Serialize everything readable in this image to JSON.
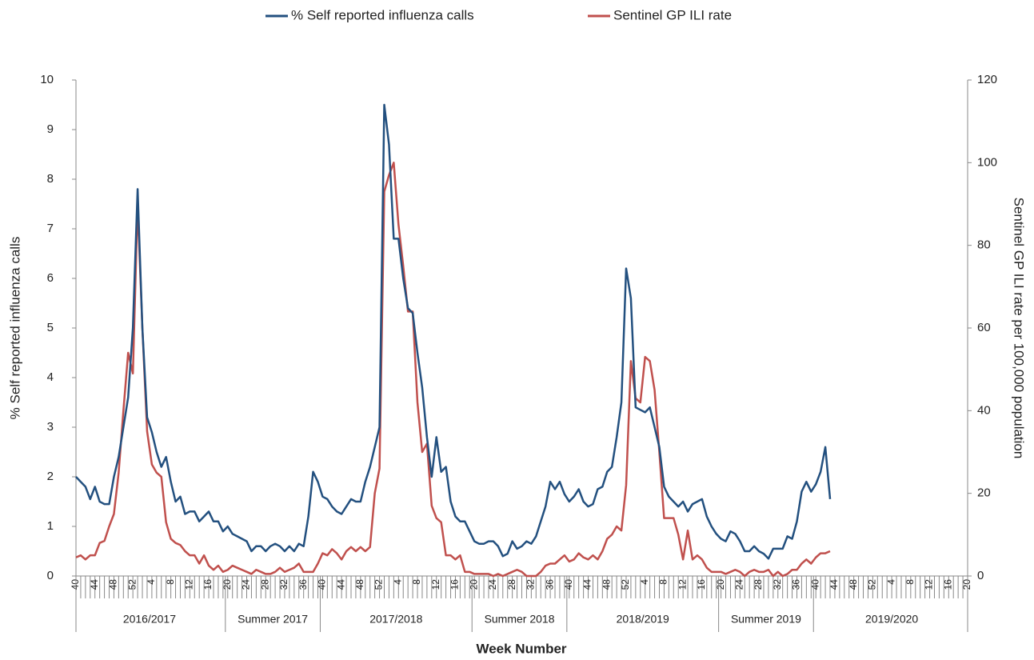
{
  "chart_data": {
    "type": "line",
    "x_label": "Week Number",
    "y_label": "% Self reported influenza calls",
    "y2_label": "Sentinel GP ILI rate per 100,000 population",
    "categories": [
      "40",
      null,
      null,
      null,
      "44",
      null,
      null,
      null,
      "48",
      null,
      null,
      null,
      "52",
      null,
      null,
      null,
      "4",
      null,
      null,
      null,
      "8",
      null,
      null,
      null,
      "12",
      null,
      null,
      null,
      "16",
      null,
      null,
      null,
      "20",
      null,
      null,
      null,
      "24",
      null,
      null,
      null,
      "28",
      null,
      null,
      null,
      "32",
      null,
      null,
      null,
      "36",
      null,
      null,
      null,
      "40",
      null,
      null,
      null,
      "44",
      null,
      null,
      null,
      "48",
      null,
      null,
      null,
      "52",
      null,
      null,
      null,
      "4",
      null,
      null,
      null,
      "8",
      null,
      null,
      null,
      "12",
      null,
      null,
      null,
      "16",
      null,
      null,
      null,
      "20",
      null,
      null,
      null,
      "24",
      null,
      null,
      null,
      "28",
      null,
      null,
      null,
      "32",
      null,
      null,
      null,
      "36",
      null,
      null,
      null,
      "40",
      null,
      null,
      null,
      "44",
      null,
      null,
      null,
      "48",
      null,
      null,
      null,
      "52",
      null,
      null,
      null,
      "4",
      null,
      null,
      null,
      "8",
      null,
      null,
      null,
      "12",
      null,
      null,
      null,
      "16",
      null,
      null,
      null,
      "20",
      null,
      null,
      null,
      "24",
      null,
      null,
      null,
      "28",
      null,
      null,
      null,
      "32",
      null,
      null,
      null,
      "36",
      null,
      null,
      null,
      "40",
      null,
      null,
      null,
      "44",
      null,
      null,
      null,
      "48",
      null,
      null,
      null,
      "52",
      null,
      null,
      null,
      "4",
      null,
      null,
      null,
      "8",
      null,
      null,
      null,
      "12",
      null,
      null,
      null,
      "16",
      null,
      null,
      null,
      "20"
    ],
    "season_groups": [
      {
        "label": "2016/2017",
        "weeks": 32
      },
      {
        "label": "Summer 2017",
        "weeks": 20
      },
      {
        "label": "2017/2018",
        "weeks": 32
      },
      {
        "label": "Summer 2018",
        "weeks": 20
      },
      {
        "label": "2018/2019",
        "weeks": 32
      },
      {
        "label": "Summer 2019",
        "weeks": 20
      },
      {
        "label": "2019/2020",
        "weeks": 33
      }
    ],
    "series": [
      {
        "name": "% Self reported influenza calls",
        "color": "#23507f",
        "axis": "y",
        "values": [
          2.0,
          1.9,
          1.8,
          1.55,
          1.8,
          1.5,
          1.45,
          1.45,
          2.0,
          2.4,
          3.0,
          3.6,
          5.0,
          7.8,
          5.0,
          3.2,
          2.9,
          2.5,
          2.2,
          2.4,
          1.9,
          1.5,
          1.6,
          1.25,
          1.3,
          1.3,
          1.1,
          1.2,
          1.3,
          1.1,
          1.1,
          0.9,
          1.0,
          0.85,
          0.8,
          0.75,
          0.7,
          0.5,
          0.6,
          0.6,
          0.5,
          0.6,
          0.65,
          0.6,
          0.5,
          0.6,
          0.5,
          0.65,
          0.6,
          1.2,
          2.1,
          1.9,
          1.6,
          1.55,
          1.4,
          1.3,
          1.25,
          1.4,
          1.55,
          1.5,
          1.5,
          1.9,
          2.2,
          2.6,
          3.0,
          9.5,
          8.7,
          6.8,
          6.8,
          6.0,
          5.4,
          5.3,
          4.5,
          3.8,
          2.8,
          2.0,
          2.8,
          2.1,
          2.2,
          1.5,
          1.2,
          1.1,
          1.1,
          0.9,
          0.7,
          0.65,
          0.65,
          0.7,
          0.7,
          0.6,
          0.4,
          0.45,
          0.7,
          0.55,
          0.6,
          0.7,
          0.65,
          0.8,
          1.1,
          1.4,
          1.9,
          1.75,
          1.9,
          1.65,
          1.5,
          1.6,
          1.75,
          1.5,
          1.4,
          1.45,
          1.75,
          1.8,
          2.1,
          2.2,
          2.8,
          3.5,
          6.2,
          5.6,
          3.4,
          3.35,
          3.3,
          3.4,
          3.0,
          2.6,
          1.8,
          1.6,
          1.5,
          1.4,
          1.5,
          1.3,
          1.45,
          1.5,
          1.55,
          1.2,
          1.0,
          0.85,
          0.75,
          0.7,
          0.9,
          0.85,
          0.7,
          0.5,
          0.5,
          0.6,
          0.5,
          0.45,
          0.35,
          0.55,
          0.55,
          0.55,
          0.8,
          0.75,
          1.1,
          1.7,
          1.9,
          1.7,
          1.85,
          2.1,
          2.6,
          1.55,
          null,
          null,
          null,
          null,
          null,
          null,
          null,
          null,
          null,
          null,
          null,
          null,
          null,
          null,
          null,
          null,
          null,
          null,
          null,
          null,
          null,
          null,
          null,
          null,
          null,
          null,
          null,
          null,
          null
        ]
      },
      {
        "name": "Sentinel GP ILI rate",
        "color": "#c0504d",
        "axis": "y2",
        "values": [
          4.5,
          5,
          4,
          5,
          5,
          8,
          8.5,
          12,
          15,
          25,
          40,
          54,
          49,
          90,
          60,
          35,
          27,
          25,
          24,
          13,
          9,
          8,
          7.5,
          6,
          5,
          5,
          3,
          5,
          2.5,
          1.5,
          2.5,
          1,
          1.5,
          2.5,
          2,
          1.5,
          1,
          0.5,
          1.5,
          1,
          0.5,
          0.5,
          1,
          2,
          1,
          1.5,
          2,
          3,
          1,
          1,
          1,
          3,
          5.5,
          5,
          6.5,
          5.5,
          4,
          6,
          7,
          6,
          7,
          6,
          7,
          20,
          26,
          93,
          97,
          100,
          85,
          75,
          64,
          64,
          42,
          30,
          32,
          17,
          14,
          13,
          5,
          5,
          4,
          5,
          1,
          1,
          0.5,
          0.5,
          0.5,
          0.5,
          0,
          0.5,
          0,
          0.5,
          1,
          1.5,
          1,
          0,
          0,
          0,
          1,
          2.5,
          3,
          3,
          4,
          5,
          3.5,
          4,
          5.5,
          4.5,
          4,
          5,
          4,
          6,
          9,
          10,
          12,
          11,
          22,
          52,
          43,
          42,
          53,
          52,
          45,
          30,
          14,
          14,
          14,
          10,
          4,
          11,
          4,
          5,
          4,
          2,
          1,
          1,
          1,
          0.5,
          1,
          1.5,
          1,
          0,
          1,
          1.5,
          1,
          1,
          1.5,
          0,
          1,
          0,
          0.5,
          1.5,
          1.5,
          3,
          4,
          3,
          4.5,
          5.5,
          5.5,
          6,
          null,
          null,
          null,
          null,
          null,
          null,
          null,
          null,
          null,
          null,
          null,
          null,
          null,
          null,
          null,
          null,
          null,
          null,
          null,
          null,
          null,
          null,
          null,
          null,
          null,
          null,
          null,
          null,
          null
        ]
      }
    ],
    "ylim": [
      0,
      10
    ],
    "yticks": [
      0,
      1,
      2,
      3,
      4,
      5,
      6,
      7,
      8,
      9,
      10
    ],
    "y2lim": [
      0,
      120
    ],
    "y2ticks": [
      0,
      20,
      40,
      60,
      80,
      100,
      120
    ],
    "grid": false,
    "legend": "top"
  }
}
